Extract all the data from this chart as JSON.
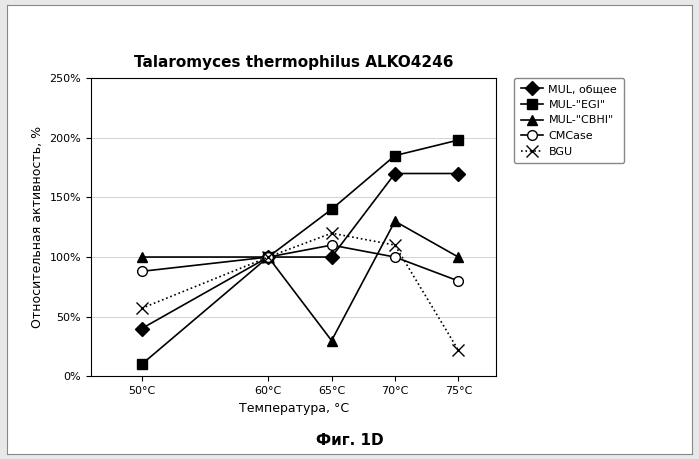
{
  "title": "Talaromyces thermophilus ALKO4246",
  "xlabel": "Температура, °C",
  "ylabel": "Относительная активность, %",
  "caption": "Фиг. 1D",
  "x_labels": [
    "50°C",
    "60°C",
    "65°C",
    "70°C",
    "75°C"
  ],
  "x_values": [
    50,
    60,
    65,
    70,
    75
  ],
  "ylim": [
    0.0,
    2.5
  ],
  "yticks": [
    0.0,
    0.5,
    1.0,
    1.5,
    2.0,
    2.5
  ],
  "xlim": [
    46,
    78
  ],
  "series": [
    {
      "label": "MUL, общее",
      "values": [
        0.4,
        1.0,
        1.0,
        1.7,
        1.7
      ],
      "color": "#000000",
      "linestyle": "-",
      "marker": "D",
      "markersize": 7,
      "linewidth": 1.2,
      "markerfacecolor": "#000000"
    },
    {
      "label": "MUL-\"EGI\"",
      "values": [
        0.1,
        1.0,
        1.4,
        1.85,
        1.98
      ],
      "color": "#000000",
      "linestyle": "-",
      "marker": "s",
      "markersize": 7,
      "linewidth": 1.2,
      "markerfacecolor": "#000000"
    },
    {
      "label": "MUL-\"CBHI\"",
      "values": [
        1.0,
        1.0,
        0.3,
        1.3,
        1.0
      ],
      "color": "#000000",
      "linestyle": "-",
      "marker": "^",
      "markersize": 7,
      "linewidth": 1.2,
      "markerfacecolor": "#000000"
    },
    {
      "label": "CMCase",
      "values": [
        0.88,
        1.0,
        1.1,
        1.0,
        0.8
      ],
      "color": "#000000",
      "linestyle": "-",
      "marker": "o",
      "markersize": 7,
      "linewidth": 1.2,
      "markerfacecolor": "#ffffff"
    },
    {
      "label": "BGU",
      "values": [
        0.57,
        1.0,
        1.2,
        1.1,
        0.22
      ],
      "color": "#000000",
      "linestyle": ":",
      "marker": "x",
      "markersize": 8,
      "linewidth": 1.2,
      "markerfacecolor": "#000000"
    }
  ],
  "background_color": "#ffffff",
  "outer_bg": "#e8e8e8",
  "grid_color": "#cccccc",
  "title_fontsize": 11,
  "label_fontsize": 9,
  "tick_fontsize": 8,
  "legend_fontsize": 8,
  "caption_fontsize": 11
}
